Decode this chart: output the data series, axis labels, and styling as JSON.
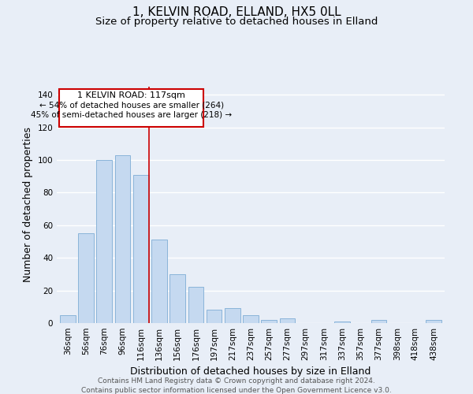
{
  "title_line1": "1, KELVIN ROAD, ELLAND, HX5 0LL",
  "title_line2": "Size of property relative to detached houses in Elland",
  "xlabel": "Distribution of detached houses by size in Elland",
  "ylabel": "Number of detached properties",
  "bar_labels": [
    "36sqm",
    "56sqm",
    "76sqm",
    "96sqm",
    "116sqm",
    "136sqm",
    "156sqm",
    "176sqm",
    "197sqm",
    "217sqm",
    "237sqm",
    "257sqm",
    "277sqm",
    "297sqm",
    "317sqm",
    "337sqm",
    "357sqm",
    "377sqm",
    "398sqm",
    "418sqm",
    "438sqm"
  ],
  "bar_values": [
    5,
    55,
    100,
    103,
    91,
    51,
    30,
    22,
    8,
    9,
    5,
    2,
    3,
    0,
    0,
    1,
    0,
    2,
    0,
    0,
    2
  ],
  "bar_color": "#c5d9f0",
  "bar_edge_color": "#8ab4d9",
  "annotation_title": "1 KELVIN ROAD: 117sqm",
  "annotation_line2": "← 54% of detached houses are smaller (264)",
  "annotation_line3": "45% of semi-detached houses are larger (218) →",
  "annotation_box_color": "#ffffff",
  "annotation_border_color": "#cc0000",
  "property_marker_color": "#cc0000",
  "property_value": 117,
  "ylim": [
    0,
    145
  ],
  "yticks": [
    0,
    20,
    40,
    60,
    80,
    100,
    120,
    140
  ],
  "footer_line1": "Contains HM Land Registry data © Crown copyright and database right 2024.",
  "footer_line2": "Contains public sector information licensed under the Open Government Licence v3.0.",
  "background_color": "#e8eef7",
  "plot_bg_color": "#e8eef7",
  "grid_color": "#ffffff",
  "title_fontsize": 11,
  "subtitle_fontsize": 9.5,
  "axis_label_fontsize": 9,
  "tick_fontsize": 7.5,
  "footer_fontsize": 6.5
}
